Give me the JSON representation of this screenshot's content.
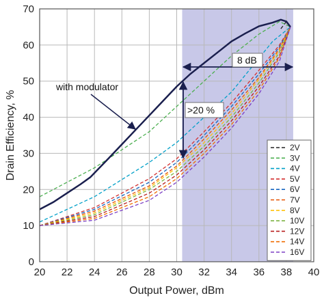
{
  "chart_data": {
    "type": "line",
    "xlabel": "Output Power, dBm",
    "ylabel": "Drain Efficiency, %",
    "xlim": [
      20,
      40
    ],
    "ylim": [
      0,
      70
    ],
    "xticks": [
      20,
      22,
      24,
      26,
      28,
      30,
      32,
      34,
      36,
      38,
      40
    ],
    "yticks": [
      0,
      10,
      20,
      30,
      40,
      50,
      60,
      70
    ],
    "grid": true,
    "shaded_region": {
      "x": [
        30.4,
        38.5
      ],
      "color": "#c8c8e8"
    },
    "legend_position": "right",
    "annotations": {
      "modulator": "with modulator",
      "gain": ">20 %",
      "range": "8 dB"
    },
    "modulator_curve": {
      "name": "with modulator",
      "color": "#1a1f4e",
      "x": [
        20,
        21,
        22,
        23,
        23.7,
        25,
        26,
        27,
        28,
        29,
        30,
        31,
        32,
        33,
        34,
        35,
        36,
        37,
        37.6,
        38,
        38.3
      ],
      "y": [
        14.5,
        16.5,
        19,
        21.5,
        23.4,
        28.5,
        32.5,
        36.5,
        40.5,
        44.5,
        48.5,
        52,
        55,
        58,
        61,
        63.2,
        65.2,
        66.2,
        67,
        66.5,
        65
      ]
    },
    "series": [
      {
        "name": "2V",
        "color": "#222222",
        "x": [
          37.6,
          38.0,
          38.3
        ],
        "y": [
          64.5,
          66.5,
          65
        ]
      },
      {
        "name": "3V",
        "color": "#4caf50",
        "x": [
          20,
          24,
          28,
          30,
          32,
          34,
          36,
          37.5,
          38.3
        ],
        "y": [
          18,
          26,
          36,
          43,
          50,
          57,
          63,
          66.5,
          65
        ]
      },
      {
        "name": "4V",
        "color": "#00a0c8",
        "x": [
          20,
          24,
          28,
          30,
          32,
          34,
          35.5,
          37,
          38.3
        ],
        "y": [
          11,
          18,
          27.5,
          33,
          40,
          47,
          54,
          61,
          65
        ]
      },
      {
        "name": "5V",
        "color": "#d32f2f",
        "x": [
          20,
          24,
          28,
          30,
          32,
          34,
          36,
          37.5,
          38.3
        ],
        "y": [
          10,
          15,
          23,
          28.5,
          36,
          44,
          53,
          60,
          65
        ]
      },
      {
        "name": "6V",
        "color": "#1565c0",
        "x": [
          20,
          24,
          28,
          30,
          32,
          34,
          36,
          37.5,
          38.3
        ],
        "y": [
          10,
          14.5,
          22,
          27.5,
          35,
          43,
          52,
          59.5,
          65
        ]
      },
      {
        "name": "7V",
        "color": "#e65100",
        "x": [
          20,
          24,
          28,
          30,
          32,
          34,
          36,
          37.5,
          38.3
        ],
        "y": [
          10,
          14,
          21,
          26.5,
          34,
          42,
          51,
          59,
          65
        ]
      },
      {
        "name": "8V",
        "color": "#ffc107",
        "x": [
          20,
          24,
          28,
          30,
          32,
          34,
          36,
          37.5,
          38.3
        ],
        "y": [
          10,
          13.5,
          20.5,
          26,
          33,
          41,
          50.5,
          58.5,
          65
        ]
      },
      {
        "name": "10V",
        "color": "#7cb342",
        "x": [
          20,
          24,
          28,
          30,
          32,
          34,
          36,
          37.5,
          38.3
        ],
        "y": [
          10,
          13,
          20,
          25,
          32,
          40,
          49.5,
          58,
          65
        ]
      },
      {
        "name": "12V",
        "color": "#b71c1c",
        "x": [
          20,
          24,
          28,
          30,
          32,
          34,
          36,
          37.5,
          38.3
        ],
        "y": [
          10,
          12.5,
          19,
          24,
          31,
          39,
          48.5,
          57,
          65
        ]
      },
      {
        "name": "14V",
        "color": "#ef6c00",
        "x": [
          20,
          24,
          28,
          30,
          32,
          34,
          36,
          37.5,
          38.3
        ],
        "y": [
          10,
          12,
          18,
          23,
          30,
          38,
          47.5,
          56.5,
          65
        ]
      },
      {
        "name": "16V",
        "color": "#7b3fc4",
        "x": [
          20,
          24,
          28,
          30,
          32,
          34,
          36,
          37.5,
          38.3
        ],
        "y": [
          10,
          11.5,
          17,
          22,
          29,
          37,
          46.5,
          55.5,
          65
        ]
      }
    ]
  }
}
